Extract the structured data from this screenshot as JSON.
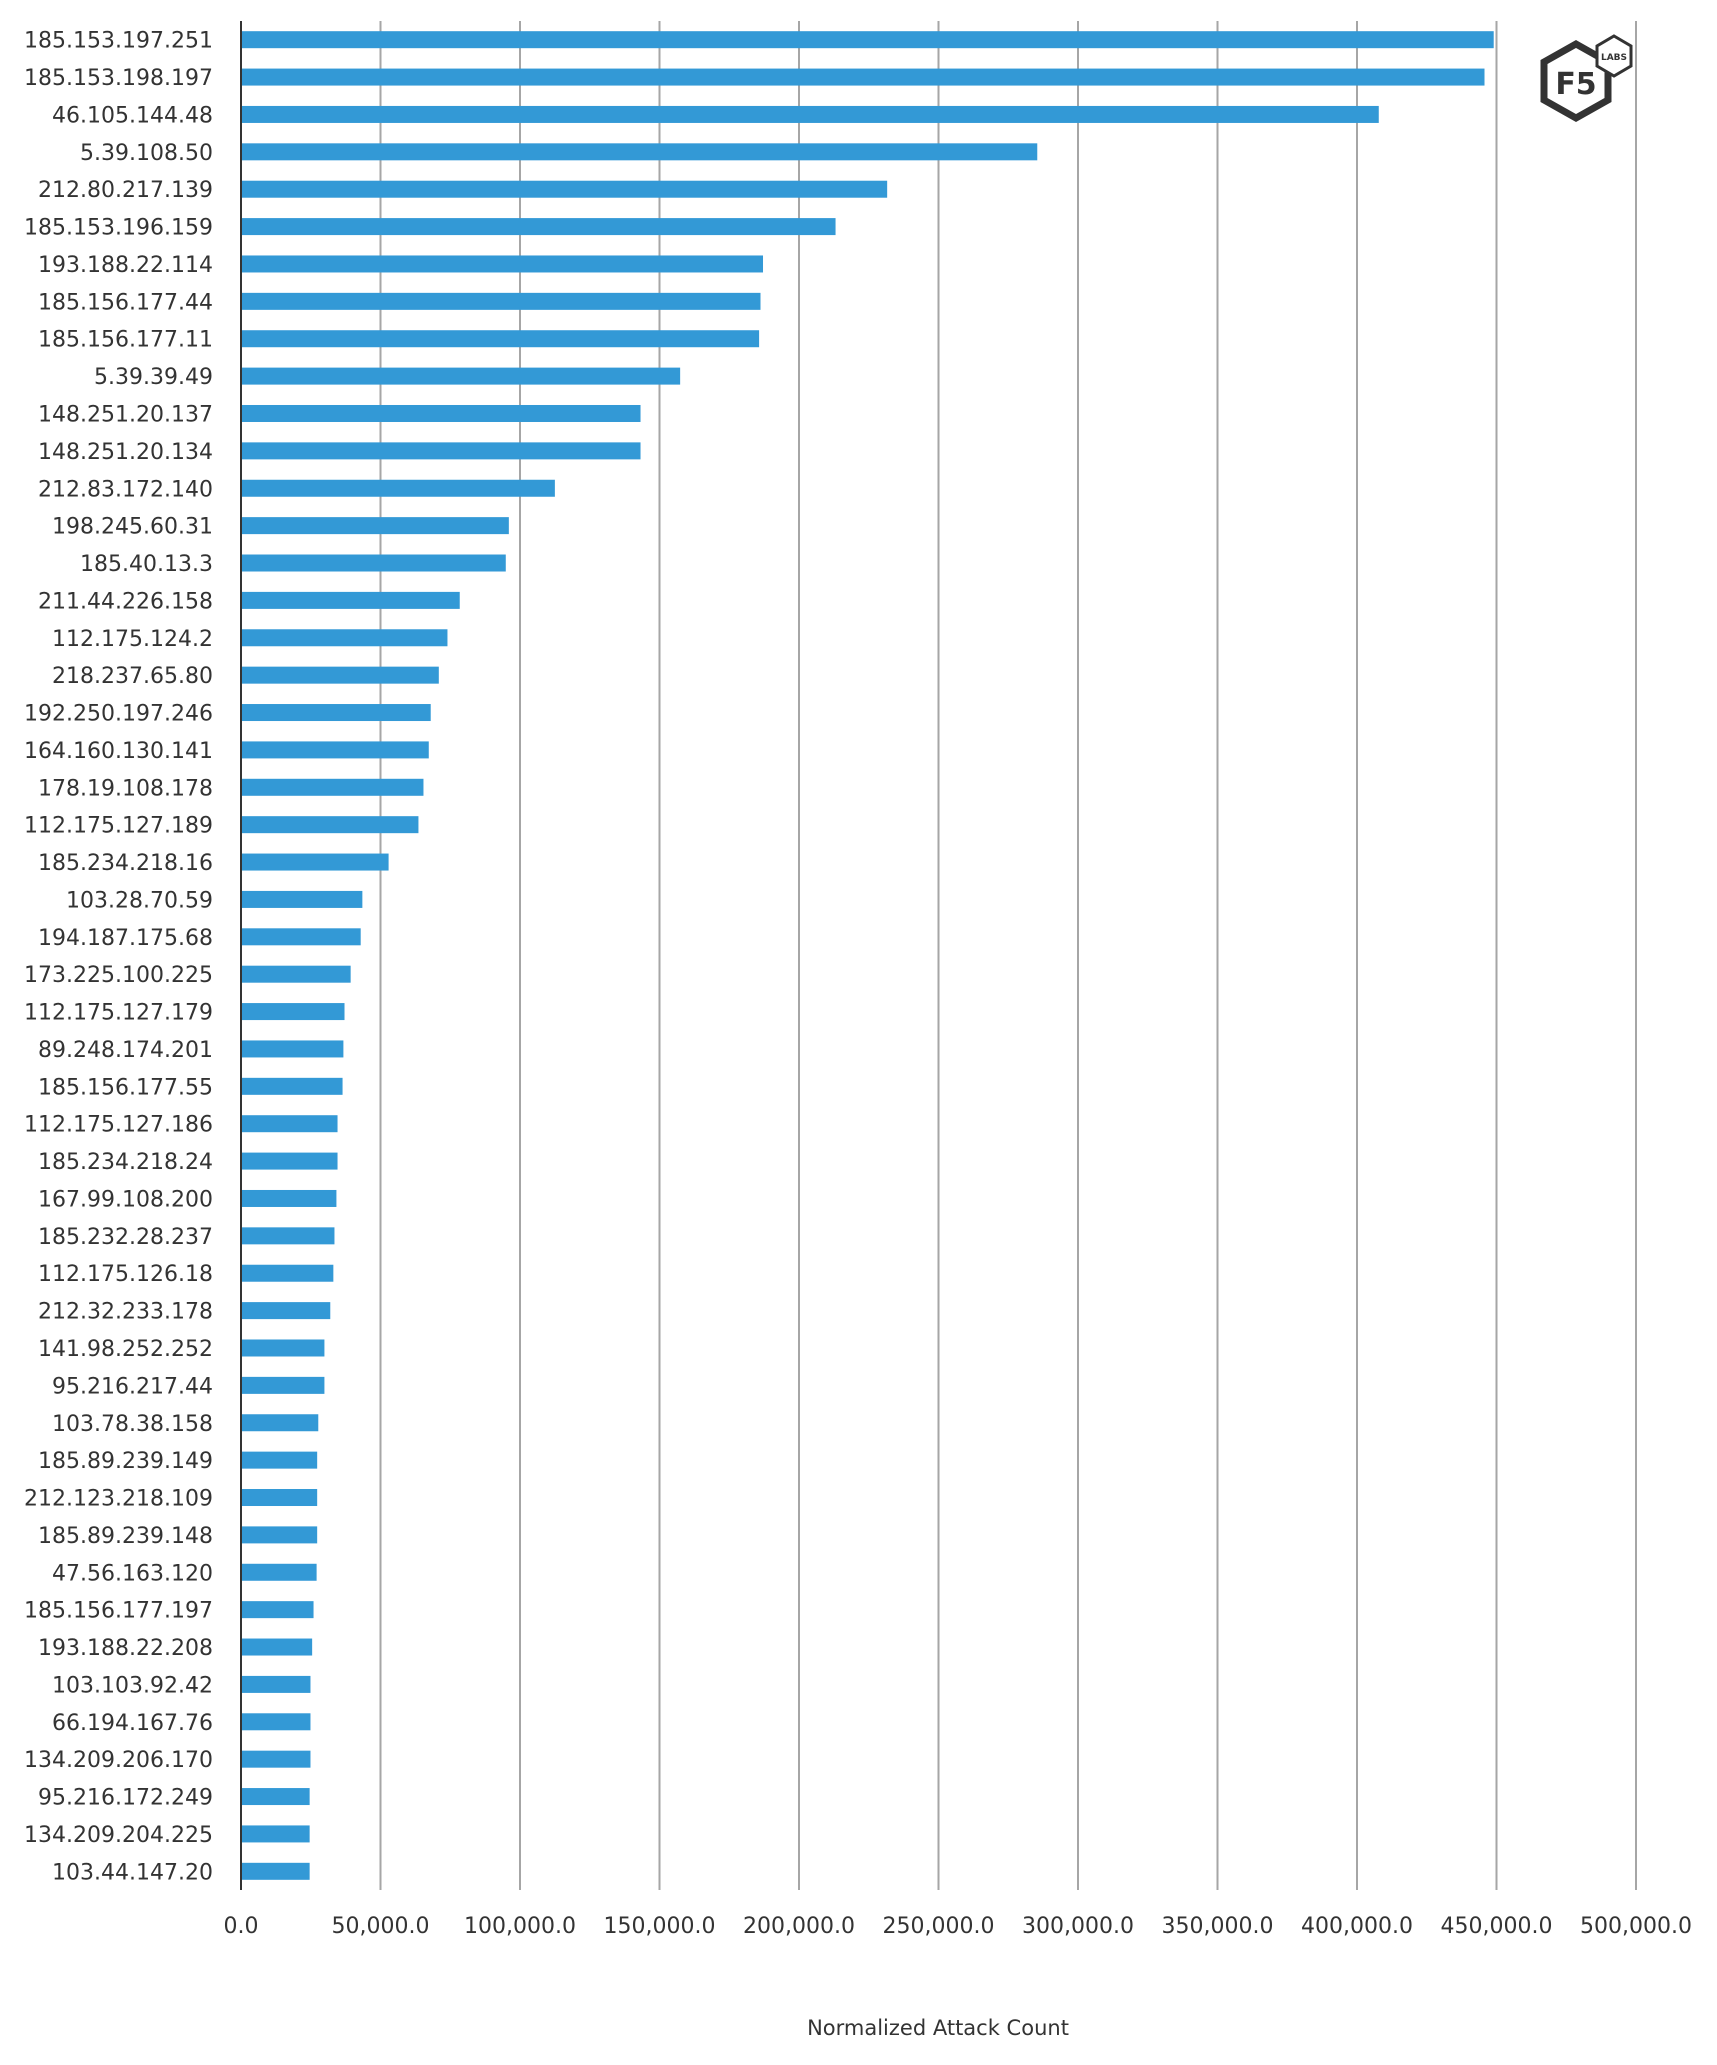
{
  "chart_data": {
    "type": "bar",
    "orientation": "horizontal",
    "categories": [
      "185.153.197.251",
      "185.153.198.197",
      "46.105.144.48",
      "5.39.108.50",
      "212.80.217.139",
      "185.153.196.159",
      "193.188.22.114",
      "185.156.177.44",
      "185.156.177.11",
      "5.39.39.49",
      "148.251.20.137",
      "148.251.20.134",
      "212.83.172.140",
      "198.245.60.31",
      "185.40.13.3",
      "211.44.226.158",
      "112.175.124.2",
      "218.237.65.80",
      "192.250.197.246",
      "164.160.130.141",
      "178.19.108.178",
      "112.175.127.189",
      "185.234.218.16",
      "103.28.70.59",
      "194.187.175.68",
      "173.225.100.225",
      "112.175.127.179",
      "89.248.174.201",
      "185.156.177.55",
      "112.175.127.186",
      "185.234.218.24",
      "167.99.108.200",
      "185.232.28.237",
      "112.175.126.18",
      "212.32.233.178",
      "141.98.252.252",
      "95.216.217.44",
      "103.78.38.158",
      "185.89.239.149",
      "212.123.218.109",
      "185.89.239.148",
      "47.56.163.120",
      "185.156.177.197",
      "193.188.22.208",
      "103.103.92.42",
      "66.194.167.76",
      "134.209.206.170",
      "95.216.172.249",
      "134.209.204.225",
      "103.44.147.20"
    ],
    "values": [
      449000,
      445700,
      407800,
      285400,
      231600,
      213100,
      187100,
      186200,
      185700,
      157400,
      143200,
      143200,
      112500,
      96000,
      94900,
      78400,
      74000,
      70900,
      68000,
      67300,
      65400,
      63600,
      52900,
      43500,
      42900,
      39300,
      37100,
      36700,
      36400,
      34600,
      34600,
      34200,
      33500,
      33100,
      32000,
      29900,
      29900,
      27700,
      27300,
      27300,
      27300,
      27100,
      26000,
      25500,
      24900,
      24900,
      24900,
      24600,
      24600,
      24600
    ],
    "xlabel": "Normalized Attack Count",
    "xlim": [
      0,
      500000
    ],
    "xticks": [
      "0.0",
      "50,000.0",
      "100,000.0",
      "150,000.0",
      "200,000.0",
      "250,000.0",
      "300,000.0",
      "350,000.0",
      "400,000.0",
      "450,000.0",
      "500,000.0"
    ],
    "grid": "vertical",
    "bar_color": "#3399d6",
    "grid_color": "#a6a6a6",
    "axis_color": "#333333"
  },
  "logo": {
    "text": "F5",
    "badge": "LABS"
  }
}
